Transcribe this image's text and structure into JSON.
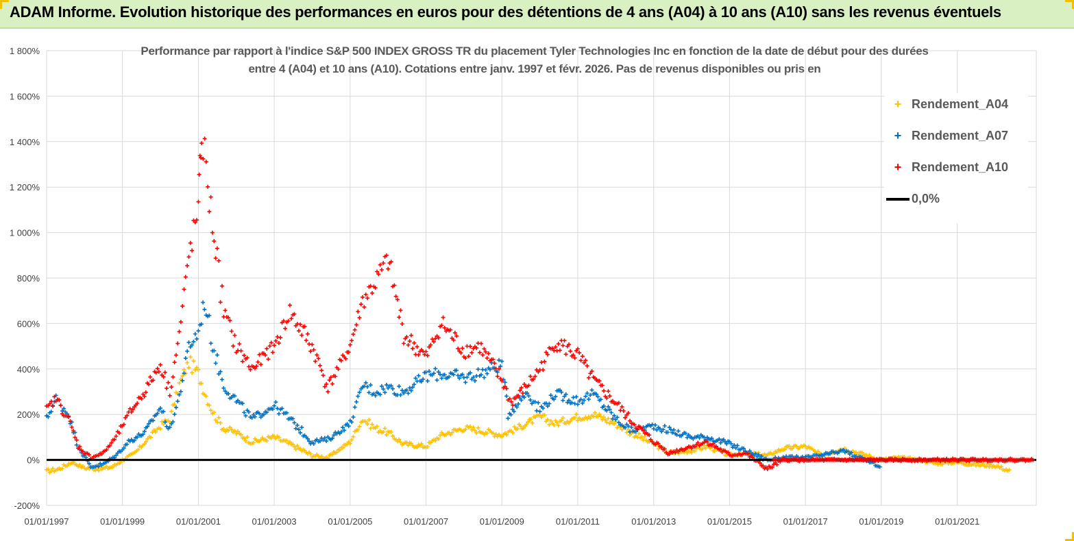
{
  "banner": {
    "title": "ADAM Informe. Evolution historique des performances en euros pour des détentions de 4 ans (A04) à 10 ans (A10) sans les revenus éventuels"
  },
  "chart_data": {
    "type": "scatter",
    "title_line1": "Performance par rapport à l'indice S&P 500 INDEX GROSS TR  du placement Tyler Technologies Inc en fonction de la date de début pour des durées",
    "title_line2": "entre 4 (A04) et 10 ans (A10).  Cotations entre janv. 1997 et févr. 2026. Pas de revenus disponibles ou pris en",
    "y_ticks": [
      "-200%",
      "0%",
      "200%",
      "400%",
      "600%",
      "800%",
      "1 000%",
      "1 200%",
      "1 400%",
      "1 600%",
      "1 800%"
    ],
    "ylim": [
      -200,
      1800
    ],
    "x_ticks": [
      "01/01/1997",
      "01/01/1999",
      "01/01/2001",
      "01/01/2003",
      "01/01/2005",
      "01/01/2007",
      "01/01/2009",
      "01/01/2011",
      "01/01/2013",
      "01/01/2015",
      "01/01/2017",
      "01/01/2019",
      "01/01/2021"
    ],
    "xlim": [
      "1997-01-01",
      "2023-02-01"
    ],
    "grid": "vertical-and-horizontal",
    "legend_position": "top-right",
    "series": [
      {
        "name": "Rendement_A04",
        "color": "#ffc000",
        "marker": "plus",
        "points": [
          [
            "1997-01-01",
            -50
          ],
          [
            "1997-05-01",
            -40
          ],
          [
            "1997-09-01",
            -10
          ],
          [
            "1998-01-01",
            -35
          ],
          [
            "1998-06-01",
            -40
          ],
          [
            "1998-10-01",
            -30
          ],
          [
            "1999-01-01",
            0
          ],
          [
            "1999-05-01",
            30
          ],
          [
            "1999-09-01",
            90
          ],
          [
            "2000-01-01",
            150
          ],
          [
            "2000-04-01",
            180
          ],
          [
            "2000-07-01",
            330
          ],
          [
            "2000-10-01",
            430
          ],
          [
            "2001-01-01",
            380
          ],
          [
            "2001-03-01",
            300
          ],
          [
            "2001-06-01",
            200
          ],
          [
            "2001-09-01",
            140
          ],
          [
            "2002-01-01",
            120
          ],
          [
            "2002-06-01",
            80
          ],
          [
            "2003-01-01",
            100
          ],
          [
            "2003-06-01",
            70
          ],
          [
            "2004-01-01",
            20
          ],
          [
            "2004-06-01",
            10
          ],
          [
            "2005-01-01",
            80
          ],
          [
            "2005-05-01",
            180
          ],
          [
            "2005-09-01",
            140
          ],
          [
            "2006-01-01",
            120
          ],
          [
            "2006-06-01",
            70
          ],
          [
            "2007-01-01",
            60
          ],
          [
            "2007-06-01",
            110
          ],
          [
            "2008-01-01",
            140
          ],
          [
            "2008-06-01",
            130
          ],
          [
            "2009-01-01",
            110
          ],
          [
            "2009-06-01",
            140
          ],
          [
            "2010-01-01",
            190
          ],
          [
            "2010-06-01",
            160
          ],
          [
            "2011-01-01",
            190
          ],
          [
            "2011-06-01",
            200
          ],
          [
            "2012-01-01",
            160
          ],
          [
            "2012-06-01",
            120
          ],
          [
            "2013-01-01",
            70
          ],
          [
            "2013-06-01",
            30
          ],
          [
            "2014-01-01",
            40
          ],
          [
            "2014-06-01",
            60
          ],
          [
            "2015-01-01",
            20
          ],
          [
            "2015-06-01",
            30
          ],
          [
            "2016-01-01",
            20
          ],
          [
            "2016-06-01",
            50
          ],
          [
            "2017-01-01",
            60
          ],
          [
            "2017-06-01",
            20
          ],
          [
            "2018-01-01",
            50
          ],
          [
            "2018-06-01",
            30
          ],
          [
            "2019-01-01",
            0
          ],
          [
            "2019-06-01",
            10
          ],
          [
            "2020-01-01",
            0
          ],
          [
            "2020-06-01",
            -15
          ],
          [
            "2021-01-01",
            -10
          ],
          [
            "2021-06-01",
            -20
          ],
          [
            "2022-01-01",
            -25
          ],
          [
            "2022-06-01",
            -50
          ]
        ]
      },
      {
        "name": "Rendement_A07",
        "color": "#0070c0",
        "marker": "plus",
        "points": [
          [
            "1997-01-01",
            180
          ],
          [
            "1997-04-01",
            270
          ],
          [
            "1997-08-01",
            200
          ],
          [
            "1997-11-01",
            60
          ],
          [
            "1998-03-01",
            -30
          ],
          [
            "1998-07-01",
            -20
          ],
          [
            "1998-11-01",
            20
          ],
          [
            "1999-03-01",
            80
          ],
          [
            "1999-08-01",
            120
          ],
          [
            "2000-01-01",
            230
          ],
          [
            "2000-04-01",
            130
          ],
          [
            "2000-07-01",
            280
          ],
          [
            "2000-10-01",
            500
          ],
          [
            "2001-01-01",
            560
          ],
          [
            "2001-03-01",
            700
          ],
          [
            "2001-06-01",
            480
          ],
          [
            "2001-09-01",
            330
          ],
          [
            "2002-01-01",
            260
          ],
          [
            "2002-06-01",
            180
          ],
          [
            "2003-01-01",
            240
          ],
          [
            "2003-06-01",
            180
          ],
          [
            "2004-01-01",
            80
          ],
          [
            "2004-06-01",
            90
          ],
          [
            "2005-01-01",
            160
          ],
          [
            "2005-05-01",
            330
          ],
          [
            "2005-09-01",
            300
          ],
          [
            "2006-01-01",
            320
          ],
          [
            "2006-06-01",
            300
          ],
          [
            "2007-01-01",
            370
          ],
          [
            "2007-06-01",
            380
          ],
          [
            "2008-01-01",
            360
          ],
          [
            "2008-06-01",
            380
          ],
          [
            "2009-01-01",
            420
          ],
          [
            "2009-03-01",
            200
          ],
          [
            "2009-09-01",
            300
          ],
          [
            "2010-01-01",
            220
          ],
          [
            "2010-06-01",
            290
          ],
          [
            "2011-01-01",
            260
          ],
          [
            "2011-06-01",
            290
          ],
          [
            "2012-01-01",
            180
          ],
          [
            "2012-06-01",
            130
          ],
          [
            "2013-01-01",
            150
          ],
          [
            "2013-06-01",
            130
          ],
          [
            "2014-01-01",
            100
          ],
          [
            "2014-06-01",
            100
          ],
          [
            "2015-01-01",
            70
          ],
          [
            "2015-06-01",
            40
          ],
          [
            "2016-01-01",
            0
          ],
          [
            "2016-06-01",
            10
          ],
          [
            "2017-01-01",
            10
          ],
          [
            "2017-06-01",
            20
          ],
          [
            "2018-01-01",
            40
          ],
          [
            "2018-06-01",
            10
          ],
          [
            "2019-01-01",
            -30
          ]
        ]
      },
      {
        "name": "Rendement_A10",
        "color": "#ff0000",
        "marker": "plus",
        "points": [
          [
            "1997-01-01",
            220
          ],
          [
            "1997-04-01",
            270
          ],
          [
            "1997-08-01",
            180
          ],
          [
            "1997-11-01",
            60
          ],
          [
            "1998-03-01",
            10
          ],
          [
            "1998-07-01",
            30
          ],
          [
            "1998-11-01",
            100
          ],
          [
            "1999-03-01",
            200
          ],
          [
            "1999-08-01",
            300
          ],
          [
            "2000-01-01",
            420
          ],
          [
            "2000-04-01",
            300
          ],
          [
            "2000-07-01",
            550
          ],
          [
            "2000-10-01",
            900
          ],
          [
            "2001-01-01",
            1100
          ],
          [
            "2001-02-01",
            1450
          ],
          [
            "2001-05-01",
            1100
          ],
          [
            "2001-09-01",
            650
          ],
          [
            "2002-01-01",
            500
          ],
          [
            "2002-06-01",
            400
          ],
          [
            "2003-01-01",
            500
          ],
          [
            "2003-06-01",
            650
          ],
          [
            "2004-01-01",
            500
          ],
          [
            "2004-06-01",
            320
          ],
          [
            "2005-01-01",
            500
          ],
          [
            "2005-05-01",
            700
          ],
          [
            "2005-09-01",
            780
          ],
          [
            "2006-01-01",
            880
          ],
          [
            "2006-06-01",
            550
          ],
          [
            "2007-01-01",
            450
          ],
          [
            "2007-06-01",
            600
          ],
          [
            "2008-01-01",
            480
          ],
          [
            "2008-06-01",
            500
          ],
          [
            "2009-01-01",
            350
          ],
          [
            "2009-04-01",
            250
          ],
          [
            "2009-09-01",
            330
          ],
          [
            "2010-01-01",
            400
          ],
          [
            "2010-06-01",
            520
          ],
          [
            "2011-01-01",
            460
          ],
          [
            "2011-06-01",
            350
          ],
          [
            "2012-01-01",
            250
          ],
          [
            "2012-06-01",
            170
          ],
          [
            "2013-01-01",
            80
          ],
          [
            "2013-06-01",
            30
          ],
          [
            "2014-01-01",
            60
          ],
          [
            "2014-06-01",
            80
          ],
          [
            "2015-01-01",
            20
          ],
          [
            "2015-06-01",
            30
          ],
          [
            "2016-01-01",
            -40
          ],
          [
            "2016-06-01",
            0
          ],
          [
            "2017-01-01",
            0
          ],
          [
            "2019-01-01",
            0
          ],
          [
            "2021-01-01",
            0
          ],
          [
            "2023-01-01",
            0
          ]
        ]
      }
    ],
    "reference_line": {
      "name": "0,0%",
      "value": 0,
      "color": "#000000"
    }
  }
}
